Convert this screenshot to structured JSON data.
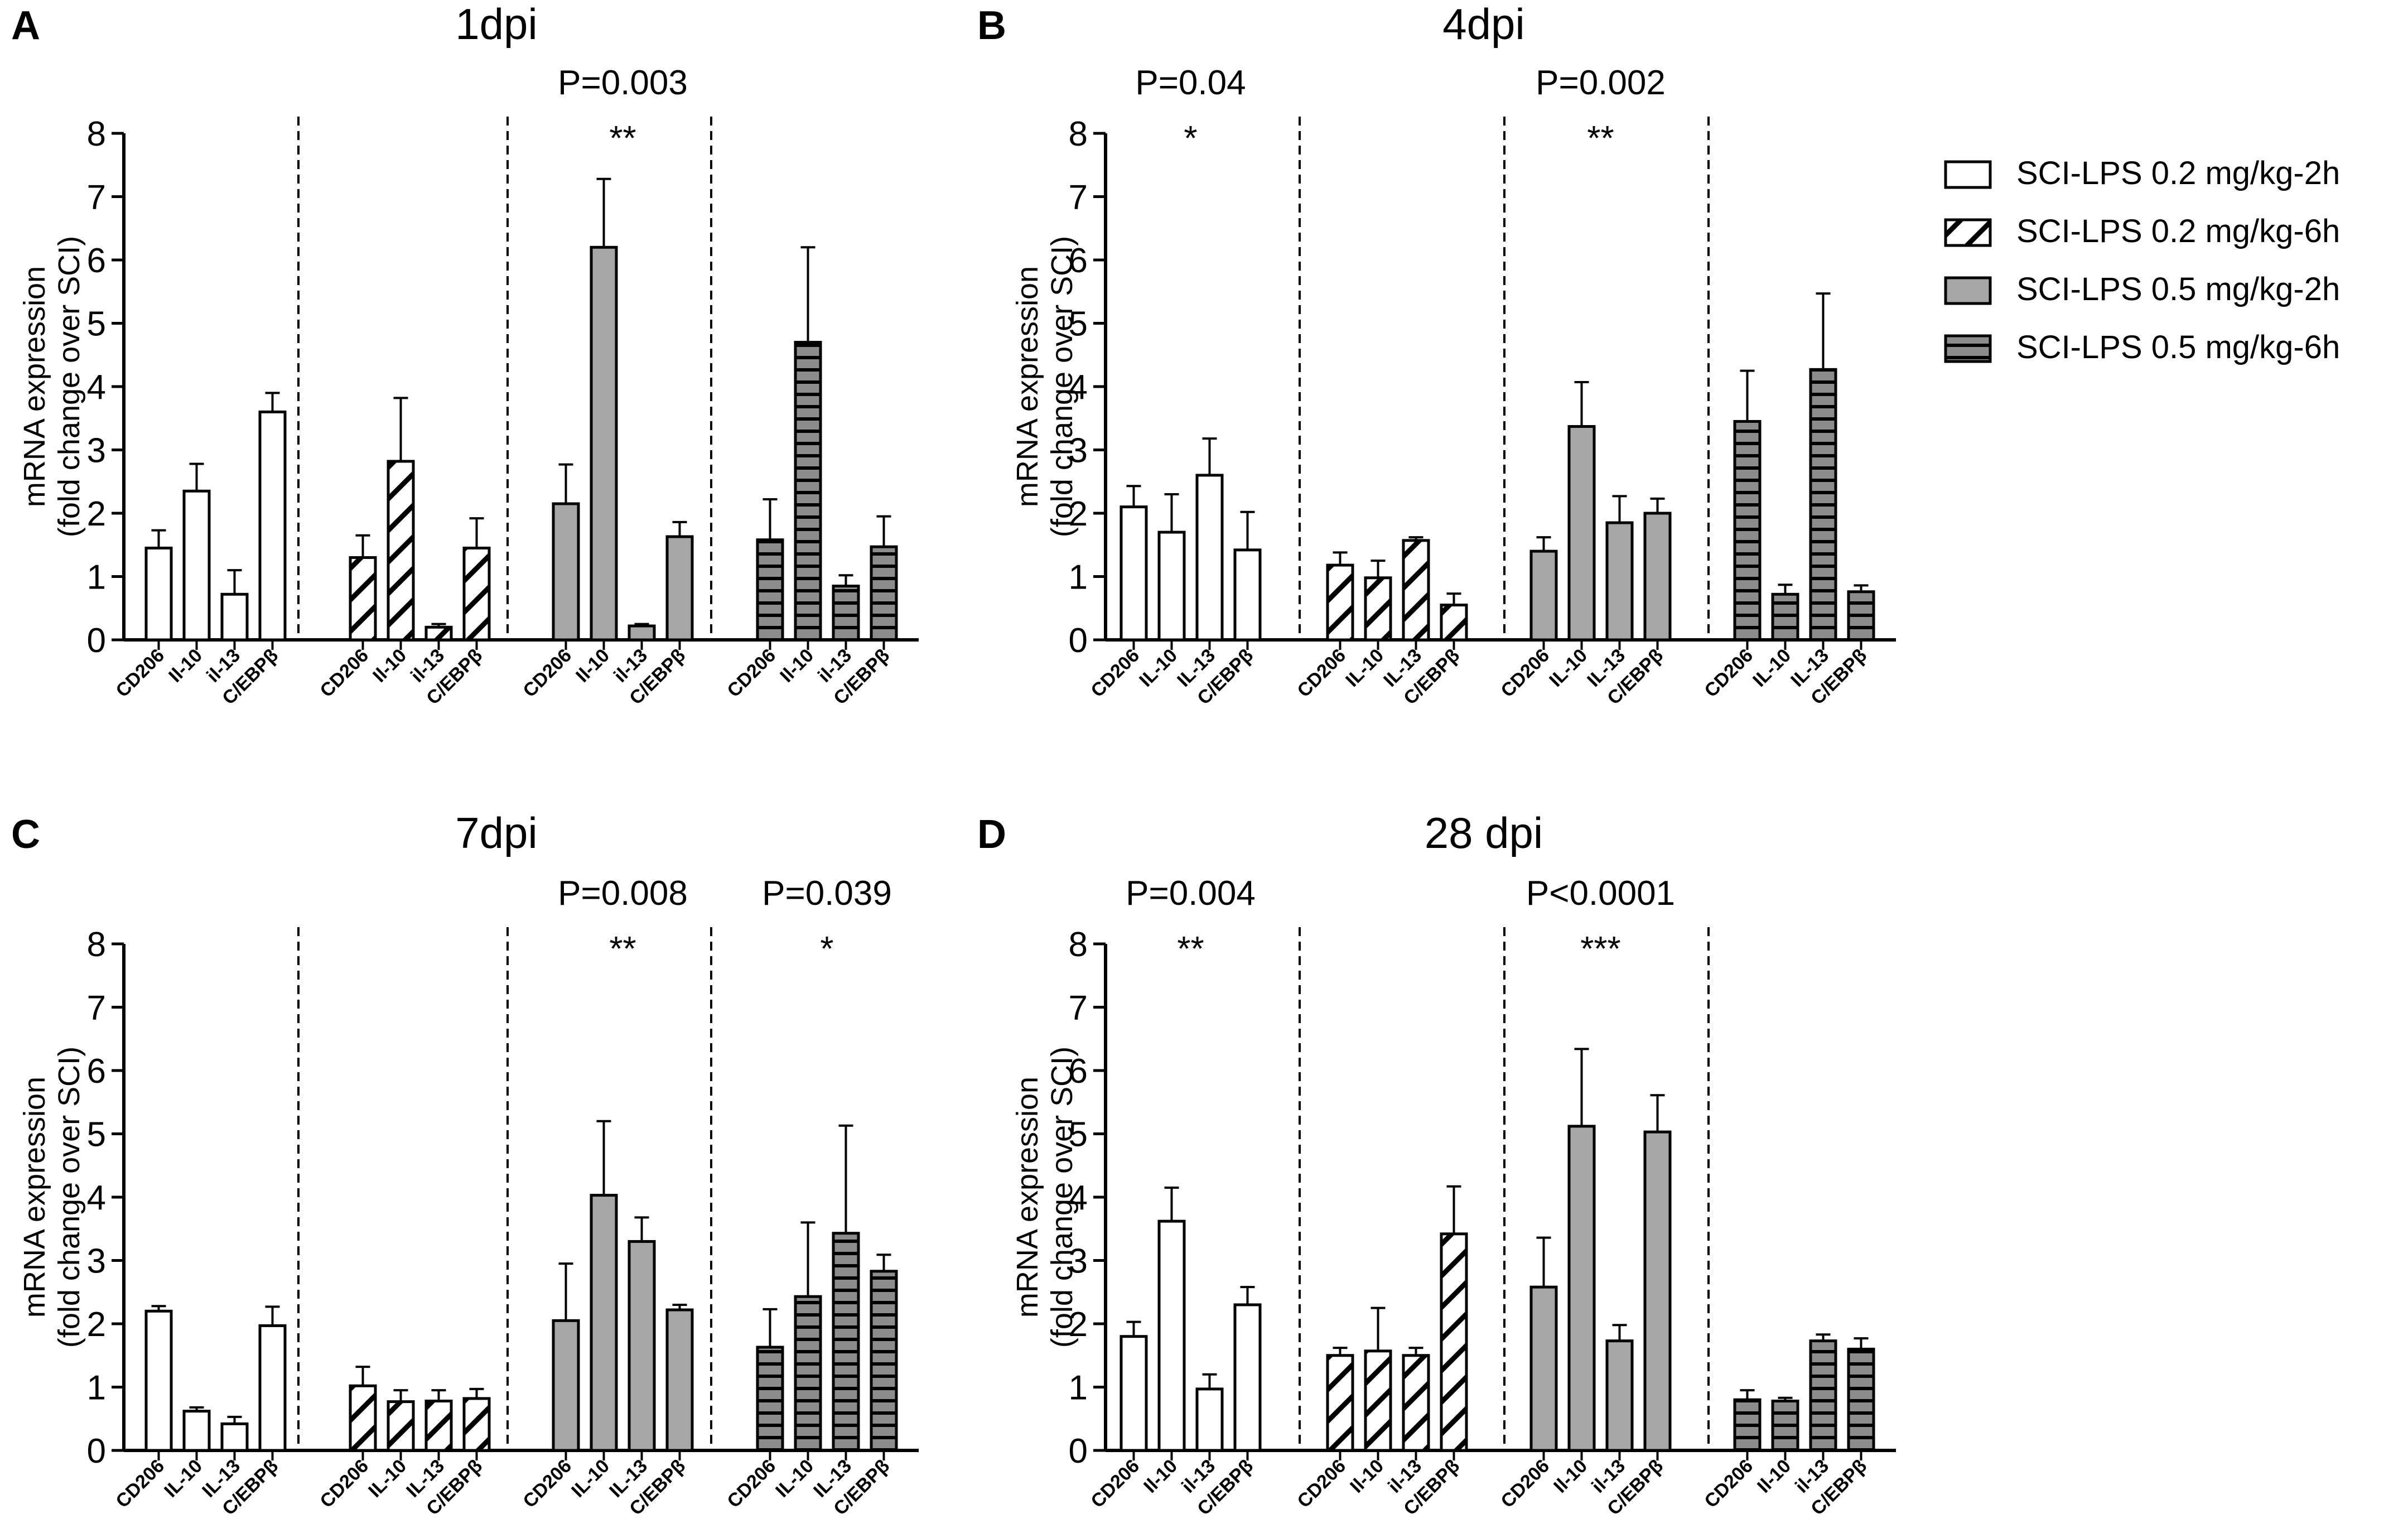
{
  "colors": {
    "light_gray": "#a6a6a6",
    "dark_gray": "#8c8c8c",
    "stroke": "#000000",
    "white": "#ffffff"
  },
  "legend": [
    {
      "label": "SCI-LPS 0.2 mg/kg-2h",
      "pattern": "white"
    },
    {
      "label": "SCI-LPS 0.2 mg/kg-6h",
      "pattern": "hatch"
    },
    {
      "label": "SCI-LPS 0.5 mg/kg-2h",
      "pattern": "gray"
    },
    {
      "label": "SCI-LPS 0.5 mg/kg-6h",
      "pattern": "hstripe"
    }
  ],
  "chart_data": [
    {
      "type": "bar",
      "panel": "A",
      "title": "1dpi",
      "ylabel_line1": "mRNA expression",
      "ylabel_line2": "(fold change over SCI)",
      "ylim": [
        0,
        8
      ],
      "yticks": [
        "0",
        "1",
        "2",
        "3",
        "4",
        "5",
        "6",
        "7",
        "8"
      ],
      "series": [
        {
          "name": "SCI-LPS 0.2 mg/kg-2h",
          "categories": [
            "CD206",
            "Il-10",
            "il-13",
            "C/EBPβ"
          ],
          "values": [
            1.45,
            2.35,
            0.72,
            3.6
          ],
          "errors": [
            0.28,
            0.43,
            0.38,
            0.3
          ]
        },
        {
          "name": "SCI-LPS 0.2 mg/kg-6h",
          "categories": [
            "CD206",
            "Il-10",
            "il-13",
            "C/EBPβ"
          ],
          "values": [
            1.3,
            2.82,
            0.2,
            1.45
          ],
          "errors": [
            0.35,
            1.0,
            0.05,
            0.47
          ]
        },
        {
          "name": "SCI-LPS 0.5 mg/kg-2h",
          "categories": [
            "CD206",
            "Il-10",
            "il-13",
            "C/EBPβ"
          ],
          "values": [
            2.15,
            6.2,
            0.22,
            1.63
          ],
          "errors": [
            0.62,
            1.08,
            0.03,
            0.23
          ]
        },
        {
          "name": "SCI-LPS 0.5 mg/kg-6h",
          "categories": [
            "CD206",
            "Il-10",
            "il-13",
            "C/EBPβ"
          ],
          "values": [
            1.58,
            4.7,
            0.85,
            1.47
          ],
          "errors": [
            0.64,
            1.5,
            0.17,
            0.48
          ]
        }
      ],
      "annotations": [
        {
          "group": 2,
          "pvalue": "P=0.003",
          "stars": "**"
        }
      ]
    },
    {
      "type": "bar",
      "panel": "B",
      "title": "4dpi",
      "ylabel_line1": "mRNA expression",
      "ylabel_line2": "(fold change over SCI)",
      "ylim": [
        0,
        8
      ],
      "yticks": [
        "0",
        "1",
        "2",
        "3",
        "4",
        "5",
        "6",
        "7",
        "8"
      ],
      "series": [
        {
          "name": "SCI-LPS 0.2 mg/kg-2h",
          "categories": [
            "CD206",
            "IL-10",
            "IL-13",
            "C/EBPβ"
          ],
          "values": [
            2.1,
            1.7,
            2.6,
            1.42
          ],
          "errors": [
            0.33,
            0.6,
            0.58,
            0.6
          ]
        },
        {
          "name": "SCI-LPS 0.2 mg/kg-6h",
          "categories": [
            "CD206",
            "IL-10",
            "IL-13",
            "C/EBPβ"
          ],
          "values": [
            1.18,
            0.98,
            1.57,
            0.55
          ],
          "errors": [
            0.2,
            0.27,
            0.05,
            0.18
          ]
        },
        {
          "name": "SCI-LPS 0.5 mg/kg-2h",
          "categories": [
            "CD206",
            "IL-10",
            "IL-13",
            "C/EBPβ"
          ],
          "values": [
            1.4,
            3.37,
            1.85,
            2.0
          ],
          "errors": [
            0.22,
            0.7,
            0.42,
            0.23
          ]
        },
        {
          "name": "SCI-LPS 0.5 mg/kg-6h",
          "categories": [
            "CD206",
            "IL-10",
            "IL-13",
            "C/EBPβ"
          ],
          "values": [
            3.45,
            0.72,
            4.27,
            0.76
          ],
          "errors": [
            0.8,
            0.15,
            1.2,
            0.1
          ]
        }
      ],
      "annotations": [
        {
          "group": 0,
          "pvalue": "P=0.04",
          "stars": "*"
        },
        {
          "group": 2,
          "pvalue": "P=0.002",
          "stars": "**"
        }
      ]
    },
    {
      "type": "bar",
      "panel": "C",
      "title": "7dpi",
      "ylabel_line1": "mRNA expression",
      "ylabel_line2": "(fold change over SCI)",
      "ylim": [
        0,
        8
      ],
      "yticks": [
        "0",
        "1",
        "2",
        "3",
        "4",
        "5",
        "6",
        "7",
        "8"
      ],
      "series": [
        {
          "name": "SCI-LPS 0.2 mg/kg-2h",
          "categories": [
            "CD206",
            "IL-10",
            "IL-13",
            "C/EBPβ"
          ],
          "values": [
            2.2,
            0.62,
            0.42,
            1.97
          ],
          "errors": [
            0.08,
            0.06,
            0.11,
            0.3
          ]
        },
        {
          "name": "SCI-LPS 0.2 mg/kg-6h",
          "categories": [
            "CD206",
            "IL-10",
            "IL-13",
            "C/EBPβ"
          ],
          "values": [
            1.02,
            0.77,
            0.78,
            0.82
          ],
          "errors": [
            0.3,
            0.18,
            0.17,
            0.15
          ]
        },
        {
          "name": "SCI-LPS 0.5 mg/kg-2h",
          "categories": [
            "CD206",
            "IL-10",
            "IL-13",
            "C/EBPβ"
          ],
          "values": [
            2.05,
            4.03,
            3.3,
            2.22
          ],
          "errors": [
            0.9,
            1.17,
            0.38,
            0.08
          ]
        },
        {
          "name": "SCI-LPS 0.5 mg/kg-6h",
          "categories": [
            "CD206",
            "IL-10",
            "IL-13",
            "C/EBPβ"
          ],
          "values": [
            1.63,
            2.43,
            3.43,
            2.83
          ],
          "errors": [
            0.6,
            1.17,
            1.7,
            0.26
          ]
        }
      ],
      "annotations": [
        {
          "group": 2,
          "pvalue": "P=0.008",
          "stars": "**"
        },
        {
          "group": 3,
          "pvalue": "P=0.039",
          "stars": "*"
        }
      ]
    },
    {
      "type": "bar",
      "panel": "D",
      "title": "28 dpi",
      "ylabel_line1": "mRNA expression",
      "ylabel_line2": "(fold change over SCI)",
      "ylim": [
        0,
        8
      ],
      "yticks": [
        "0",
        "1",
        "2",
        "3",
        "4",
        "5",
        "6",
        "7",
        "8"
      ],
      "series": [
        {
          "name": "SCI-LPS 0.2 mg/kg-2h",
          "categories": [
            "CD206",
            "Il-10",
            "il-13",
            "C/EBPβ"
          ],
          "values": [
            1.8,
            3.62,
            0.97,
            2.3
          ],
          "errors": [
            0.23,
            0.53,
            0.23,
            0.28
          ]
        },
        {
          "name": "SCI-LPS 0.2 mg/kg-6h",
          "categories": [
            "CD206",
            "Il-10",
            "il-13",
            "C/EBPβ"
          ],
          "values": [
            1.5,
            1.57,
            1.5,
            3.42
          ],
          "errors": [
            0.12,
            0.68,
            0.12,
            0.75
          ]
        },
        {
          "name": "SCI-LPS 0.5 mg/kg-2h",
          "categories": [
            "CD206",
            "Il-10",
            "il-13",
            "C/EBPβ"
          ],
          "values": [
            2.58,
            5.12,
            1.73,
            5.03
          ],
          "errors": [
            0.78,
            1.22,
            0.25,
            0.58
          ]
        },
        {
          "name": "SCI-LPS 0.5 mg/kg-6h",
          "categories": [
            "CD206",
            "Il-10",
            "il-13",
            "C/EBPβ"
          ],
          "values": [
            0.8,
            0.78,
            1.73,
            1.6
          ],
          "errors": [
            0.15,
            0.05,
            0.1,
            0.17
          ]
        }
      ],
      "annotations": [
        {
          "group": 0,
          "pvalue": "P=0.004",
          "stars": "**"
        },
        {
          "group": 2,
          "pvalue": "P<0.0001",
          "stars": "***"
        }
      ]
    }
  ]
}
